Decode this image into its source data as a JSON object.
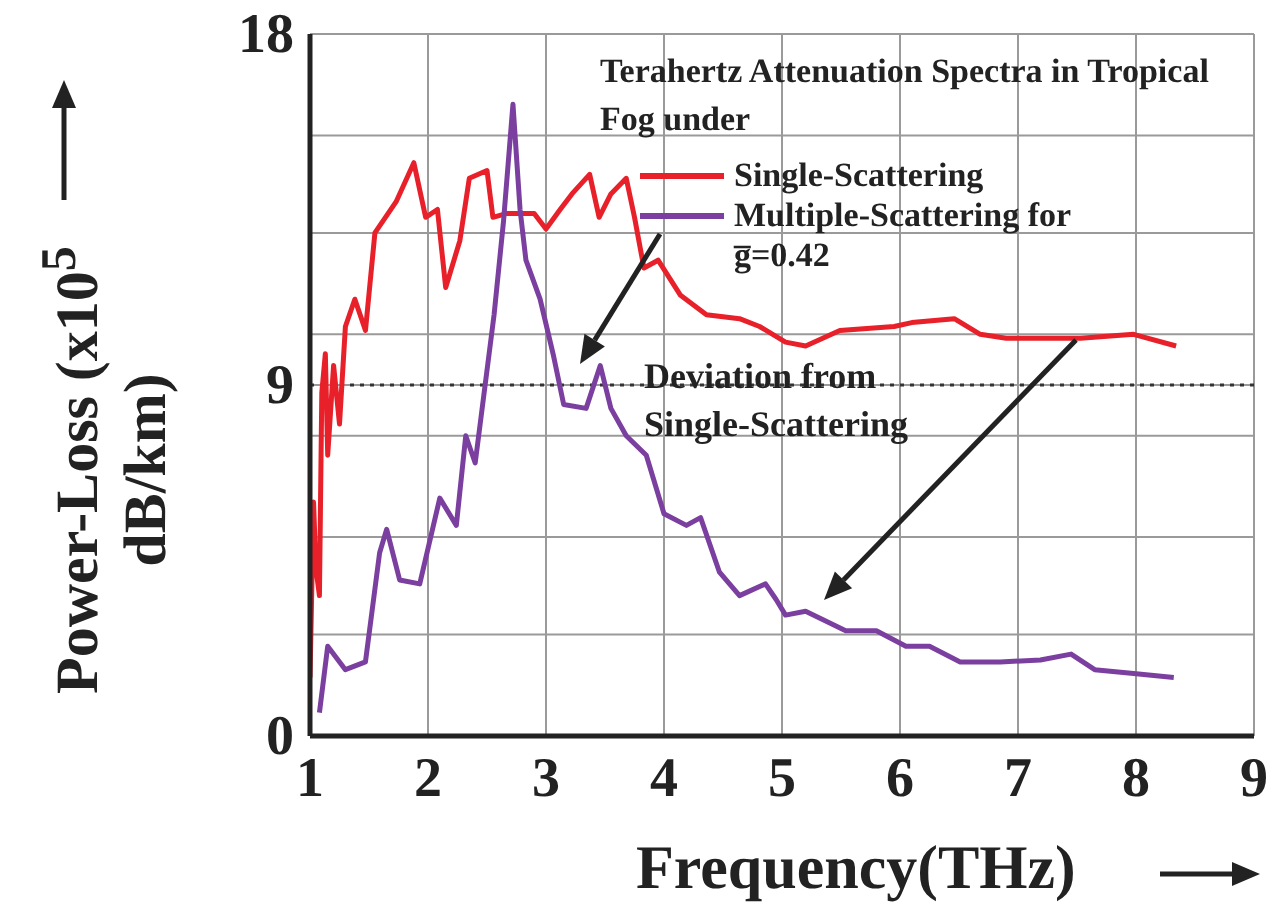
{
  "chart_data": {
    "type": "line",
    "title": "Terahertz Attenuation Spectra in Tropical Fog under",
    "xlabel": "Frequency(THz)",
    "ylabel": "Power-Loss (x10$^{5}$ dB/km)",
    "xlim": [
      1,
      9
    ],
    "xticks": [
      1,
      2,
      3,
      4,
      5,
      6,
      7,
      8,
      9
    ],
    "ylim": [
      0,
      18
    ],
    "yticks": [
      0,
      {
        "value": 2.6,
        "label": null
      },
      {
        "value": 5.1,
        "label": null
      },
      {
        "value": 7.7,
        "label": null
      },
      9,
      {
        "value": 10.3,
        "label": null
      },
      {
        "value": 12.9,
        "label": null
      },
      {
        "value": 15.4,
        "label": null
      },
      18
    ],
    "grid": true,
    "legend": "top right",
    "marker": "none",
    "line_style": "solid",
    "ref_lines": [
      {
        "axis": "y",
        "value": 9,
        "color": "#333333",
        "line_style": "dotted"
      }
    ],
    "annotations": [
      "Deviation from Single-Scattering"
    ],
    "series": [
      {
        "name": "Single-Scattering",
        "color": "#e8202a",
        "x": [
          1.0,
          1.03,
          1.05,
          1.08,
          1.1,
          1.13,
          1.15,
          1.2,
          1.25,
          1.3,
          1.38,
          1.47,
          1.55,
          1.73,
          1.88,
          1.98,
          2.08,
          2.15,
          2.27,
          2.35,
          2.5,
          2.55,
          2.67,
          2.75,
          2.9,
          3.0,
          3.12,
          3.22,
          3.37,
          3.45,
          3.55,
          3.68,
          3.75,
          3.83,
          3.95,
          4.14,
          4.36,
          4.64,
          4.81,
          5.03,
          5.2,
          5.49,
          5.95,
          6.1,
          6.46,
          6.68,
          6.9,
          7.2,
          7.53,
          7.98,
          8.34
        ],
        "values": [
          1.5,
          6.0,
          4.3,
          3.6,
          8.8,
          9.8,
          7.2,
          9.5,
          8.0,
          10.5,
          11.2,
          10.4,
          12.9,
          13.7,
          14.7,
          13.3,
          13.5,
          11.5,
          12.7,
          14.3,
          14.5,
          13.3,
          13.4,
          13.4,
          13.4,
          13.0,
          13.5,
          13.9,
          14.4,
          13.3,
          13.9,
          14.3,
          13.3,
          12.0,
          12.2,
          11.3,
          10.8,
          10.7,
          10.5,
          10.1,
          10.0,
          10.4,
          10.5,
          10.6,
          10.7,
          10.3,
          10.2,
          10.2,
          10.2,
          10.3,
          10.0
        ]
      },
      {
        "name": "Multiple-Scattering for g̅=0.42",
        "color": "#7b3fa0",
        "x": [
          1.08,
          1.15,
          1.3,
          1.47,
          1.59,
          1.65,
          1.76,
          1.93,
          2.1,
          2.24,
          2.32,
          2.4,
          2.56,
          2.64,
          2.72,
          2.78,
          2.83,
          2.95,
          3.06,
          3.15,
          3.34,
          3.46,
          3.55,
          3.68,
          3.85,
          4.0,
          4.19,
          4.31,
          4.47,
          4.64,
          4.86,
          4.95,
          5.03,
          5.2,
          5.54,
          5.8,
          6.05,
          6.25,
          6.51,
          6.85,
          7.19,
          7.45,
          7.65,
          7.98,
          8.32
        ],
        "values": [
          0.6,
          2.3,
          1.7,
          1.9,
          4.7,
          5.3,
          4.0,
          3.9,
          6.1,
          5.4,
          7.7,
          7.0,
          10.8,
          13.2,
          16.2,
          13.5,
          12.2,
          11.2,
          9.8,
          8.5,
          8.4,
          9.5,
          8.4,
          7.7,
          7.2,
          5.7,
          5.4,
          5.6,
          4.2,
          3.6,
          3.9,
          3.5,
          3.1,
          3.2,
          2.7,
          2.7,
          2.3,
          2.3,
          1.9,
          1.9,
          1.95,
          2.1,
          1.7,
          1.6,
          1.5
        ]
      }
    ]
  }
}
